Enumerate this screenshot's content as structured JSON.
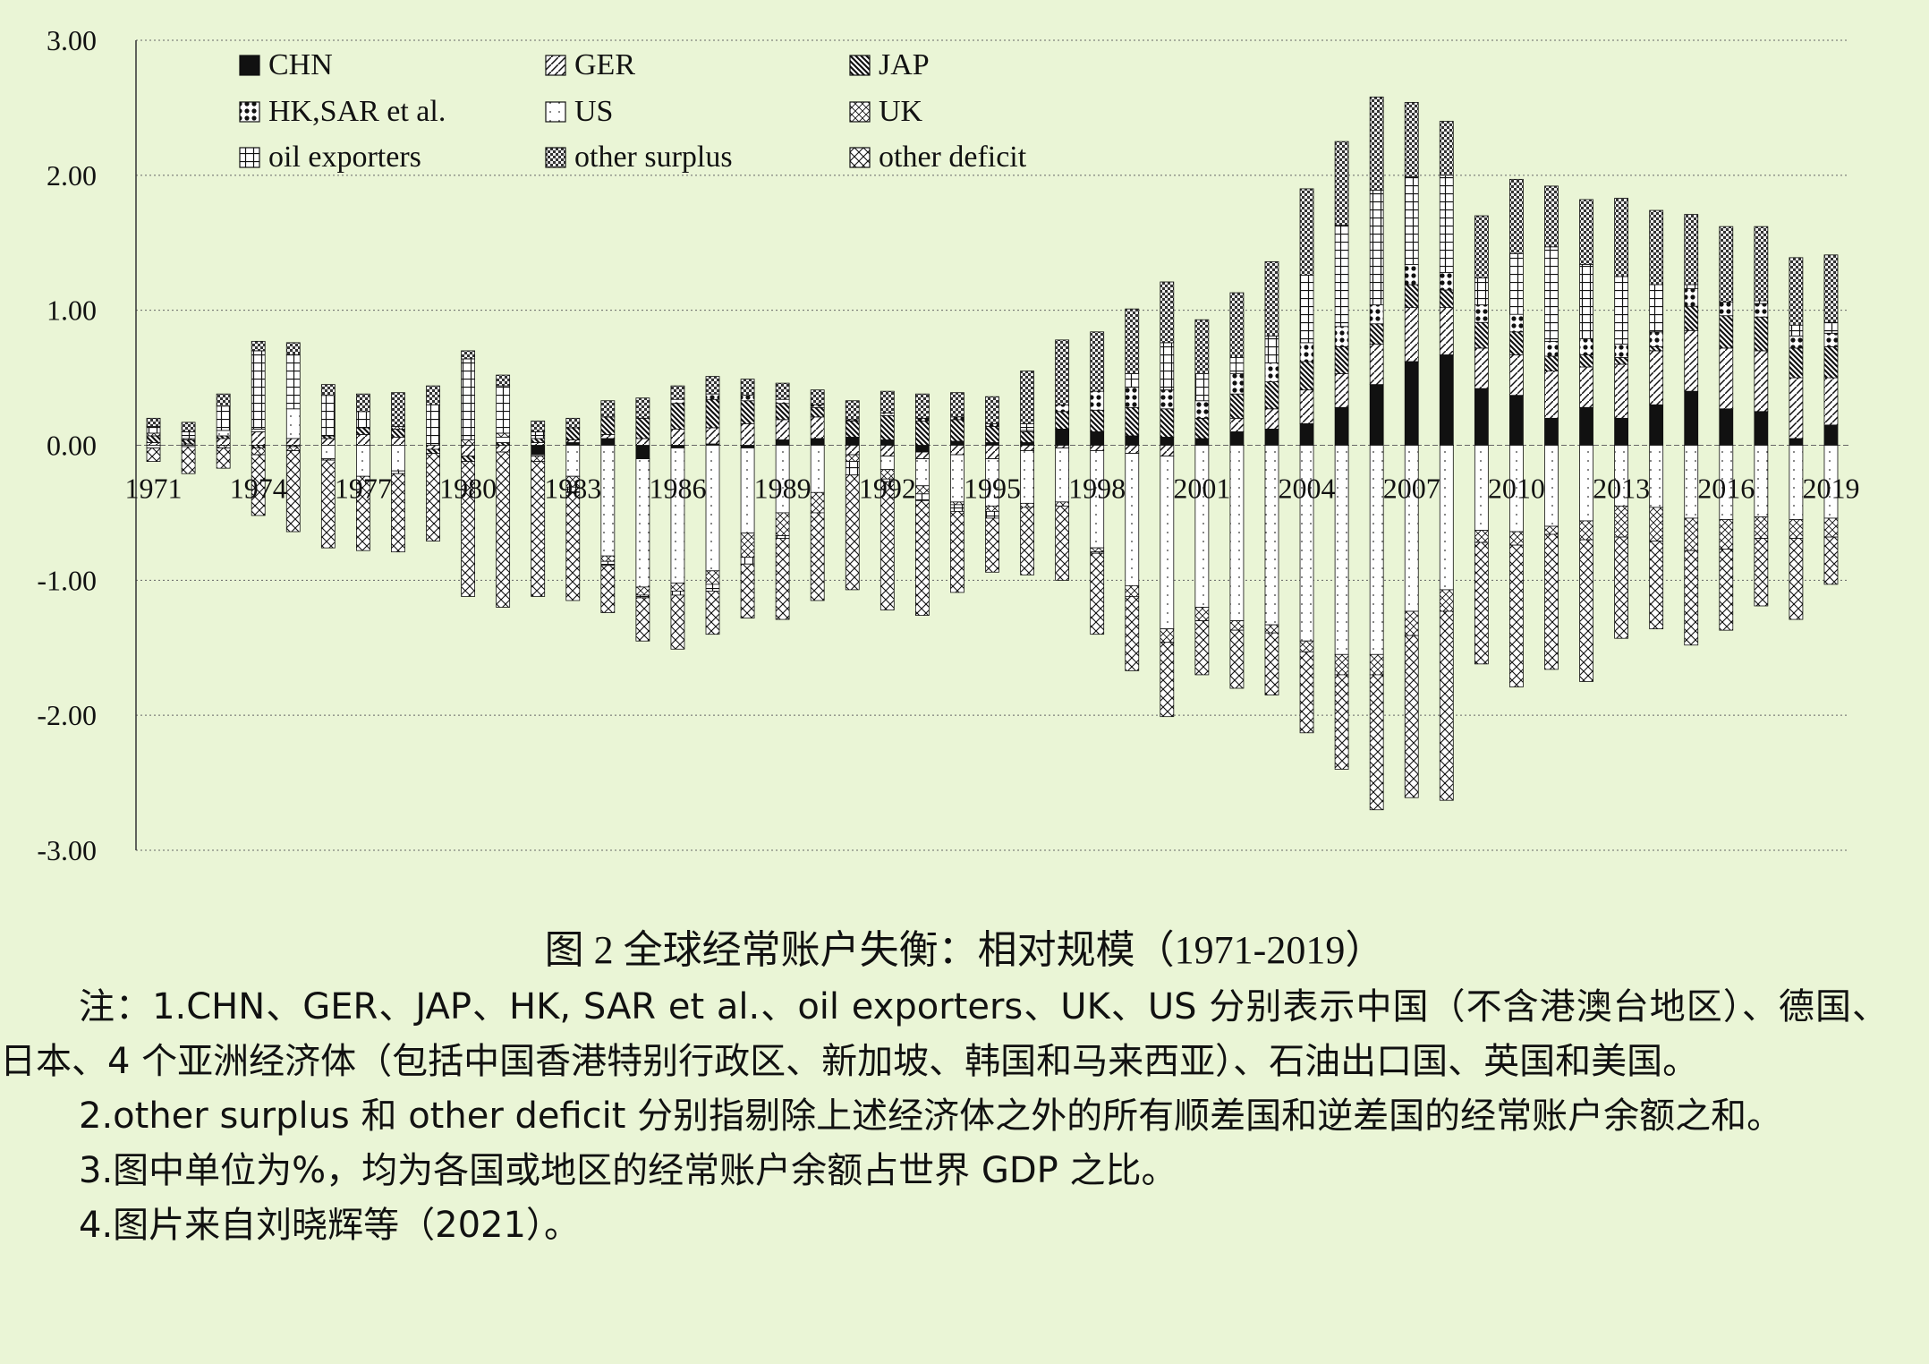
{
  "chart_data": {
    "type": "bar",
    "stacked": true,
    "y_ticks": [
      "3.00",
      "2.00",
      "1.00",
      "0.00",
      "-1.00",
      "-2.00",
      "-3.00"
    ],
    "ylim": [
      -3,
      3
    ],
    "grid": "horizontal dotted",
    "legend_position": "top-left",
    "x_tick_labels": [
      "1971",
      "1974",
      "1977",
      "1980",
      "1983",
      "1986",
      "1989",
      "1992",
      "1995",
      "1998",
      "2001",
      "2004",
      "2007",
      "2010",
      "2013",
      "2016",
      "2019"
    ],
    "x": [
      1971,
      1972,
      1973,
      1974,
      1975,
      1976,
      1977,
      1978,
      1979,
      1980,
      1981,
      1982,
      1983,
      1984,
      1985,
      1986,
      1987,
      1988,
      1989,
      1990,
      1991,
      1992,
      1993,
      1994,
      1995,
      1996,
      1997,
      1998,
      1999,
      2000,
      2001,
      2002,
      2003,
      2004,
      2005,
      2006,
      2007,
      2008,
      2009,
      2010,
      2011,
      2012,
      2013,
      2014,
      2015,
      2016,
      2017,
      2018,
      2019
    ],
    "series": [
      {
        "name": "CHN",
        "pattern": "solid",
        "values": [
          0,
          0,
          0,
          0,
          0,
          0,
          0,
          0,
          0,
          0,
          0,
          -0.07,
          0.02,
          0.05,
          -0.1,
          -0.02,
          0.01,
          -0.02,
          0.04,
          0.05,
          0.06,
          0.04,
          -0.05,
          0.03,
          0.02,
          0.02,
          0.12,
          0.1,
          0.07,
          0.06,
          0.05,
          0.1,
          0.12,
          0.16,
          0.28,
          0.45,
          0.62,
          0.67,
          0.42,
          0.37,
          0.2,
          0.28,
          0.2,
          0.3,
          0.4,
          0.27,
          0.25,
          0.05,
          0.15
        ]
      },
      {
        "name": "GER",
        "pattern": "diagonal",
        "values": [
          0.02,
          0.01,
          0.05,
          0.1,
          0.05,
          0.05,
          0.08,
          0.06,
          -0.03,
          -0.08,
          -0.05,
          0.02,
          0.02,
          0.03,
          0.05,
          0.12,
          0.12,
          0.16,
          0.15,
          0.16,
          -0.07,
          -0.08,
          -0.05,
          -0.07,
          -0.1,
          -0.04,
          -0.02,
          -0.04,
          -0.06,
          -0.08,
          0.0,
          0.1,
          0.15,
          0.25,
          0.25,
          0.3,
          0.4,
          0.35,
          0.3,
          0.3,
          0.35,
          0.3,
          0.4,
          0.4,
          0.45,
          0.45,
          0.45,
          0.45,
          0.35
        ]
      },
      {
        "name": "JAP",
        "pattern": "hatched",
        "values": [
          0.05,
          0.03,
          0.02,
          -0.02,
          -0.01,
          0.02,
          0.05,
          0.06,
          -0.03,
          -0.04,
          0.02,
          0.03,
          0.09,
          0.13,
          0.15,
          0.19,
          0.21,
          0.17,
          0.12,
          0.07,
          0.12,
          0.18,
          0.18,
          0.16,
          0.12,
          0.08,
          0.13,
          0.16,
          0.21,
          0.21,
          0.15,
          0.18,
          0.2,
          0.21,
          0.2,
          0.15,
          0.17,
          0.13,
          0.19,
          0.17,
          0.11,
          0.09,
          0.05,
          0.03,
          0.18,
          0.24,
          0.25,
          0.22,
          0.23
        ]
      },
      {
        "name": "HK,SAR et al.",
        "pattern": "dots",
        "values": [
          0,
          0,
          0,
          0,
          0,
          0,
          0,
          0,
          0,
          0,
          0,
          0,
          0,
          0,
          0,
          0.03,
          0.04,
          0.04,
          0.03,
          0.02,
          0.01,
          0.02,
          0.02,
          0.02,
          0.02,
          0.01,
          0.05,
          0.14,
          0.15,
          0.14,
          0.13,
          0.15,
          0.14,
          0.14,
          0.15,
          0.14,
          0.15,
          0.13,
          0.13,
          0.13,
          0.11,
          0.12,
          0.1,
          0.11,
          0.13,
          0.1,
          0.1,
          0.09,
          0.1
        ]
      },
      {
        "name": "US",
        "pattern": "open",
        "values": [
          -0.02,
          -0.01,
          0.04,
          0.02,
          0.22,
          -0.1,
          -0.23,
          -0.19,
          0.0,
          0.0,
          0.04,
          -0.01,
          -0.23,
          -0.82,
          -0.95,
          -1.0,
          -0.93,
          -0.63,
          -0.5,
          -0.35,
          0.0,
          -0.1,
          -0.2,
          -0.35,
          -0.35,
          -0.39,
          -0.4,
          -0.72,
          -0.98,
          -1.28,
          -1.2,
          -1.3,
          -1.33,
          -1.45,
          -1.55,
          -1.55,
          -1.23,
          -1.07,
          -0.63,
          -0.64,
          -0.6,
          -0.56,
          -0.45,
          -0.46,
          -0.54,
          -0.55,
          -0.53,
          -0.55,
          -0.54
        ]
      },
      {
        "name": "UK",
        "pattern": "cross",
        "values": [
          0.02,
          0.01,
          -0.02,
          -0.05,
          -0.03,
          -0.01,
          0.0,
          0.02,
          0.0,
          0.04,
          0.03,
          -0.04,
          -0.08,
          -0.04,
          -0.06,
          -0.06,
          -0.1,
          -0.18,
          -0.17,
          -0.15,
          -0.05,
          -0.07,
          -0.06,
          -0.02,
          -0.04,
          -0.03,
          -0.03,
          -0.03,
          -0.08,
          -0.1,
          -0.1,
          -0.07,
          -0.06,
          -0.08,
          -0.15,
          -0.15,
          -0.18,
          -0.16,
          -0.09,
          -0.1,
          -0.06,
          -0.14,
          -0.23,
          -0.25,
          -0.24,
          -0.22,
          -0.16,
          -0.14,
          -0.14
        ]
      },
      {
        "name": "oil exporters",
        "pattern": "grid",
        "values": [
          0.05,
          0.05,
          0.18,
          0.58,
          0.4,
          0.3,
          0.12,
          -0.02,
          0.3,
          0.6,
          0.35,
          0.05,
          -0.04,
          -0.03,
          -0.02,
          -0.03,
          -0.05,
          -0.05,
          -0.02,
          0.0,
          -0.1,
          -0.02,
          -0.05,
          -0.05,
          -0.05,
          0.05,
          0.0,
          -0.01,
          0.1,
          0.35,
          0.2,
          0.12,
          0.2,
          0.5,
          0.75,
          0.85,
          0.65,
          0.72,
          0.2,
          0.45,
          0.7,
          0.55,
          0.5,
          0.35,
          0.03,
          0.0,
          0.02,
          0.08,
          0.08
        ]
      },
      {
        "name": "other surplus",
        "pattern": "checker",
        "values": [
          0.06,
          0.07,
          0.09,
          0.07,
          0.09,
          0.08,
          0.13,
          0.25,
          0.14,
          0.06,
          0.08,
          0.08,
          0.07,
          0.12,
          0.15,
          0.1,
          0.13,
          0.12,
          0.12,
          0.11,
          0.14,
          0.16,
          0.18,
          0.18,
          0.2,
          0.39,
          0.48,
          0.44,
          0.48,
          0.45,
          0.4,
          0.48,
          0.55,
          0.64,
          0.62,
          0.69,
          0.55,
          0.4,
          0.46,
          0.55,
          0.45,
          0.48,
          0.58,
          0.55,
          0.52,
          0.56,
          0.55,
          0.5,
          0.5
        ]
      },
      {
        "name": "other deficit",
        "pattern": "diamond",
        "values": [
          -0.1,
          -0.2,
          -0.15,
          -0.45,
          -0.6,
          -0.65,
          -0.55,
          -0.58,
          -0.65,
          -1.0,
          -1.15,
          -1.0,
          -0.8,
          -0.35,
          -0.32,
          -0.4,
          -0.32,
          -0.4,
          -0.6,
          -0.65,
          -0.85,
          -0.95,
          -0.85,
          -0.6,
          -0.4,
          -0.5,
          -0.55,
          -0.6,
          -0.55,
          -0.55,
          -0.4,
          -0.43,
          -0.46,
          -0.6,
          -0.7,
          -1.0,
          -1.2,
          -1.4,
          -0.9,
          -1.05,
          -1.0,
          -1.05,
          -0.75,
          -0.65,
          -0.7,
          -0.6,
          -0.5,
          -0.6,
          -0.35
        ]
      }
    ]
  },
  "caption": "图 2  全球经常账户失衡：相对规模（1971-2019）",
  "notes": [
    "注：1.CHN、GER、JAP、HK, SAR et al.、oil exporters、UK、US 分别表示中国（不含港澳台地区）、德国、日本、4 个亚洲经济体（包括中国香港特别行政区、新加坡、韩国和马来西亚）、石油出口国、英国和美国。",
    "2.other surplus 和 other deficit 分别指剔除上述经济体之外的所有顺差国和逆差国的经常账户余额之和。",
    "3.图中单位为%，均为各国或地区的经常账户余额占世界 GDP 之比。",
    "4.图片来自刘晓辉等（2021）。"
  ],
  "colors": {
    "background": "#eaf5d6",
    "ink": "#111111",
    "grid": "#555555"
  }
}
